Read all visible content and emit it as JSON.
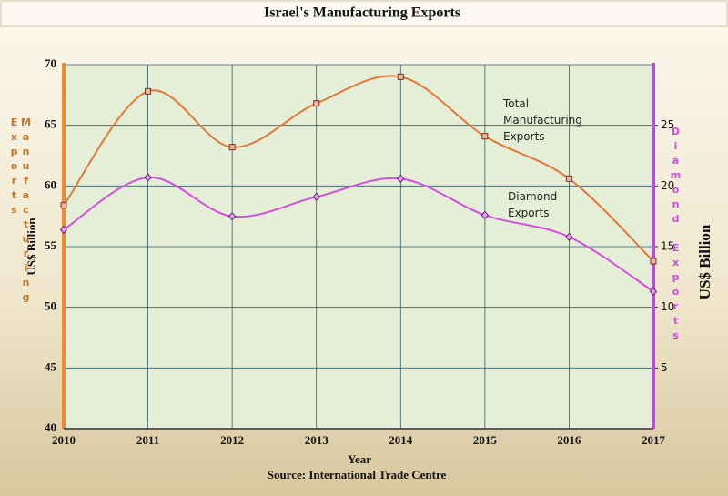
{
  "chart_data": {
    "type": "line",
    "title": "Israel's Manufacturing Exports",
    "x_label": "Year",
    "y_label": "US$ Billion",
    "y_axis_title": "Manufacturing Exports",
    "y2_label": "US$ Billion",
    "y2_axis_title": "Diamond Exports",
    "source": "Source: International Trade Centre",
    "categories": [
      "2010",
      "2011",
      "2012",
      "2013",
      "2014",
      "2015",
      "2016",
      "2017"
    ],
    "series": [
      {
        "name": "Total Manufacturing Exports",
        "color": "#e07a3a",
        "values": [
          58.4,
          67.8,
          63.2,
          66.8,
          69.0,
          64.1,
          60.6,
          53.8
        ]
      },
      {
        "name": "Diamond Exports",
        "color": "#d24fe0",
        "axis": "y2",
        "values": [
          16.4,
          20.7,
          17.5,
          19.1,
          20.6,
          17.6,
          15.8,
          11.3
        ]
      }
    ],
    "ylim": [
      40,
      70
    ],
    "yticks": [
      40,
      45,
      50,
      55,
      60,
      65,
      70
    ],
    "y2lim": [
      0,
      30
    ],
    "y2ticks": [
      5,
      10,
      15,
      20,
      25
    ],
    "grid": true,
    "smooth": true
  }
}
